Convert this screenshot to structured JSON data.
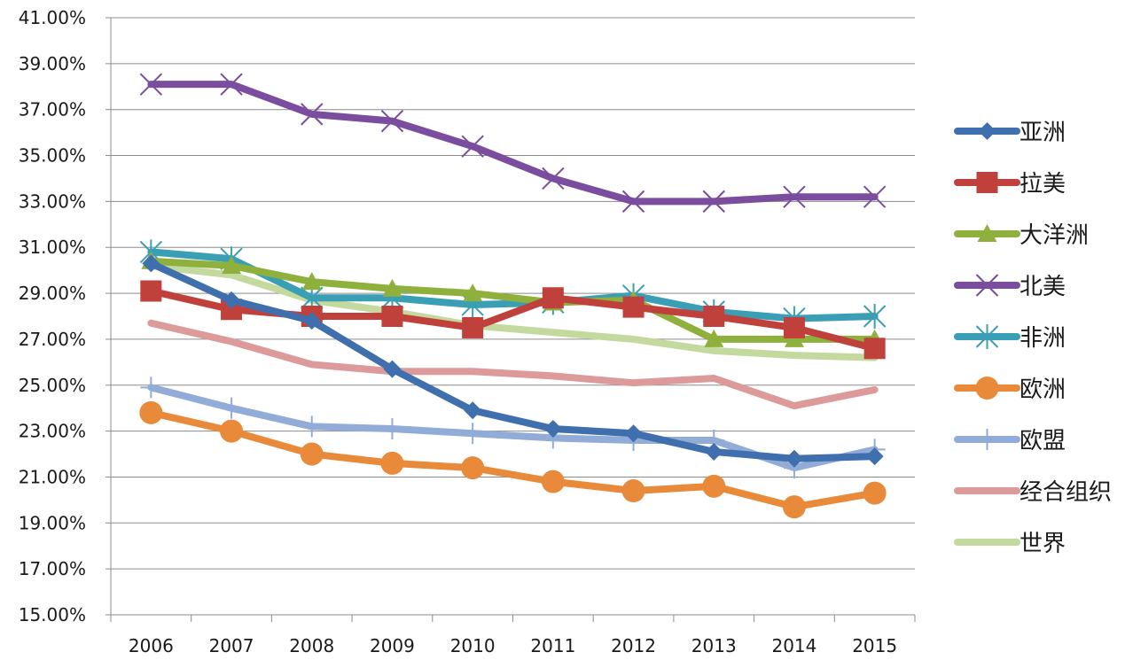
{
  "chart_data": {
    "type": "line",
    "categories": [
      "2006",
      "2007",
      "2008",
      "2009",
      "2010",
      "2011",
      "2012",
      "2013",
      "2014",
      "2015"
    ],
    "ylim": [
      15,
      41
    ],
    "ytick_step": 2,
    "ytick_labels": [
      "15.00%",
      "17.00%",
      "19.00%",
      "21.00%",
      "23.00%",
      "25.00%",
      "27.00%",
      "29.00%",
      "31.00%",
      "33.00%",
      "35.00%",
      "37.00%",
      "39.00%",
      "41.00%"
    ],
    "grid": true,
    "legend_position": "right",
    "series": [
      {
        "name": "亚洲",
        "color": "#3f6fad",
        "marker": "diamond",
        "values": [
          30.3,
          28.7,
          27.8,
          25.7,
          23.9,
          23.1,
          22.9,
          22.1,
          21.8,
          21.9
        ]
      },
      {
        "name": "拉美",
        "color": "#c0413c",
        "marker": "square",
        "values": [
          29.1,
          28.3,
          28.0,
          28.0,
          27.5,
          28.8,
          28.4,
          28.0,
          27.5,
          26.6
        ]
      },
      {
        "name": "大洋洲",
        "color": "#8fb03c",
        "marker": "triangle",
        "values": [
          30.4,
          30.2,
          29.5,
          29.2,
          29.0,
          28.6,
          28.7,
          27.0,
          27.0,
          27.0
        ]
      },
      {
        "name": "北美",
        "color": "#7a4d9e",
        "marker": "x",
        "values": [
          38.1,
          38.1,
          36.8,
          36.5,
          35.4,
          34.0,
          33.0,
          33.0,
          33.2,
          33.2
        ]
      },
      {
        "name": "非洲",
        "color": "#3a9fb5",
        "marker": "star",
        "values": [
          30.8,
          30.5,
          28.8,
          28.8,
          28.5,
          28.6,
          28.9,
          28.2,
          27.9,
          28.0
        ]
      },
      {
        "name": "欧洲",
        "color": "#e9893a",
        "marker": "circle",
        "values": [
          23.8,
          23.0,
          22.0,
          21.6,
          21.4,
          20.8,
          20.4,
          20.6,
          19.7,
          20.3
        ]
      },
      {
        "name": "欧盟",
        "color": "#92acd8",
        "marker": "plus",
        "values": [
          24.9,
          24.0,
          23.2,
          23.1,
          22.9,
          22.7,
          22.6,
          22.6,
          21.4,
          22.2
        ]
      },
      {
        "name": "经合组织",
        "color": "#dc9a9a",
        "marker": "none",
        "values": [
          27.7,
          26.9,
          25.9,
          25.6,
          25.6,
          25.4,
          25.1,
          25.3,
          24.1,
          24.8
        ]
      },
      {
        "name": "世界",
        "color": "#c3d99e",
        "marker": "none",
        "values": [
          30.2,
          29.8,
          28.7,
          28.2,
          27.6,
          27.3,
          27.0,
          26.5,
          26.3,
          26.2
        ]
      }
    ]
  }
}
